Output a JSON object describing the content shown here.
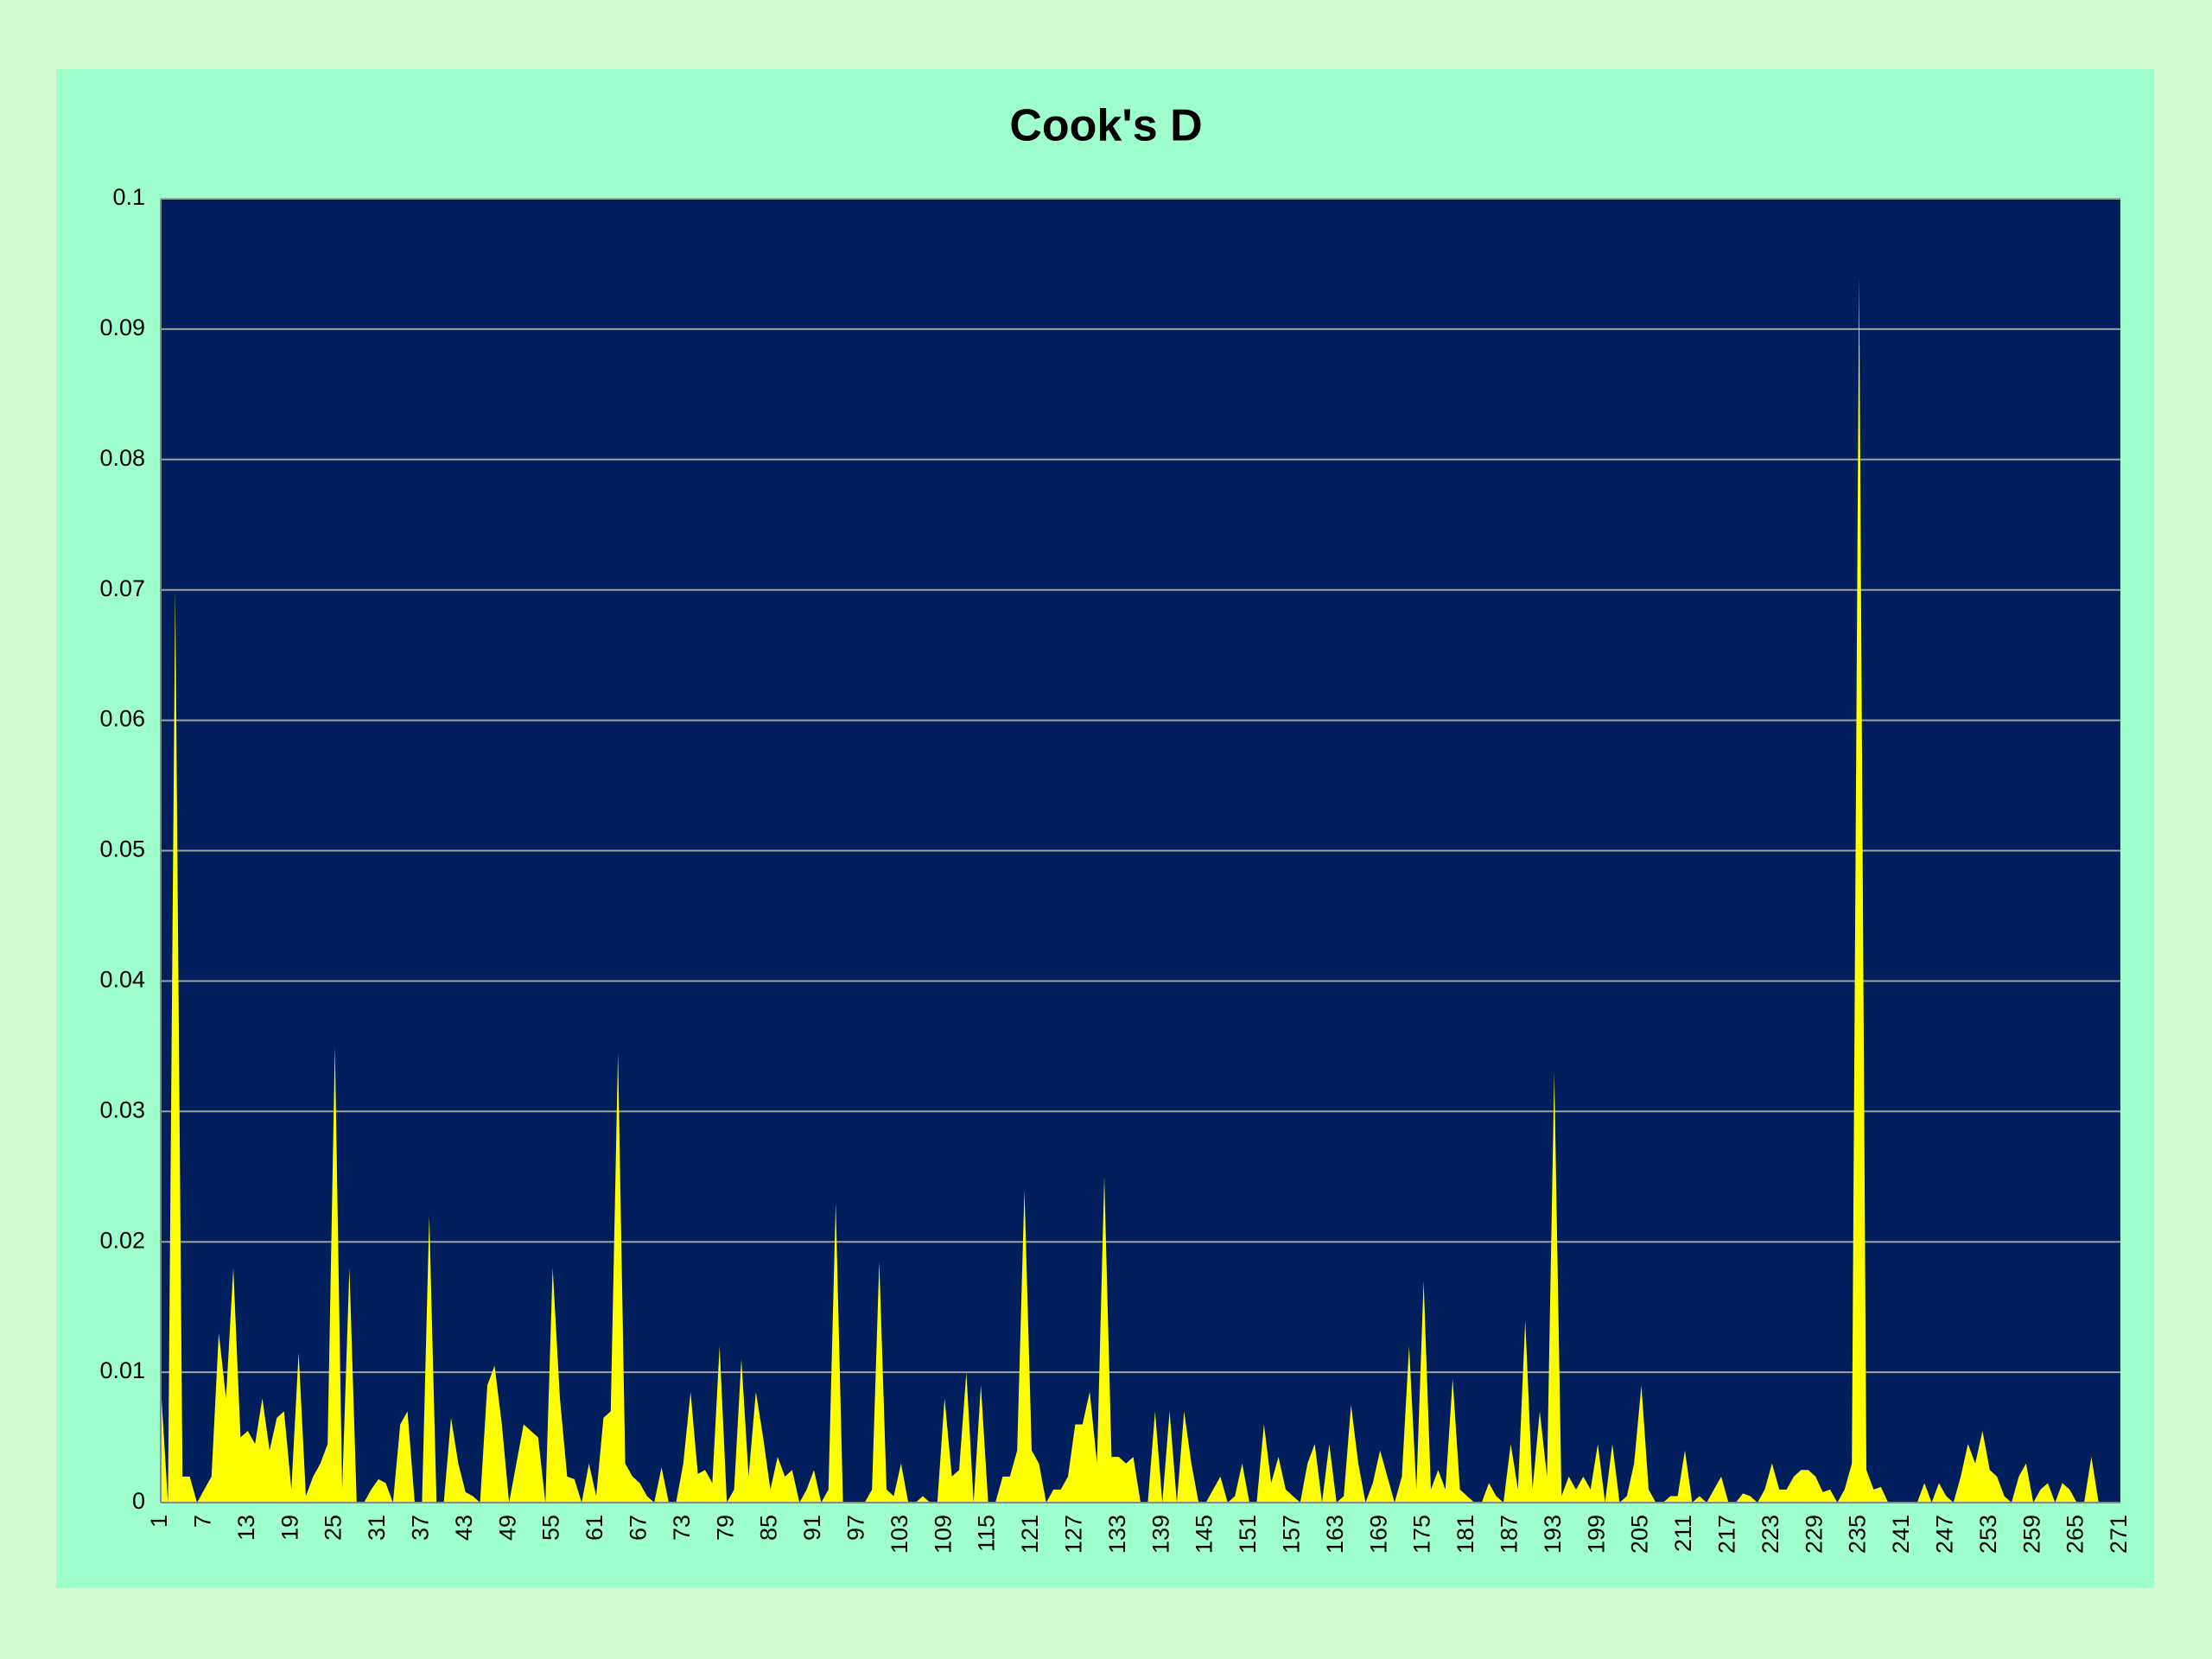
{
  "chart_data": {
    "type": "area",
    "title": "Cook's D",
    "categories": [
      "1",
      null,
      null,
      null,
      null,
      null,
      "7",
      null,
      null,
      null,
      null,
      null,
      "13",
      null,
      null,
      null,
      null,
      null,
      "19",
      null,
      null,
      null,
      null,
      null,
      "25",
      null,
      null,
      null,
      null,
      null,
      "31",
      null,
      null,
      null,
      null,
      null,
      "37",
      null,
      null,
      null,
      null,
      null,
      "43",
      null,
      null,
      null,
      null,
      null,
      "49",
      null,
      null,
      null,
      null,
      null,
      "55",
      null,
      null,
      null,
      null,
      null,
      "61",
      null,
      null,
      null,
      null,
      null,
      "67",
      null,
      null,
      null,
      null,
      null,
      "73",
      null,
      null,
      null,
      null,
      null,
      "79",
      null,
      null,
      null,
      null,
      null,
      "85",
      null,
      null,
      null,
      null,
      null,
      "91",
      null,
      null,
      null,
      null,
      null,
      "97",
      null,
      null,
      null,
      null,
      null,
      "103",
      null,
      null,
      null,
      null,
      null,
      "109",
      null,
      null,
      null,
      null,
      null,
      "115",
      null,
      null,
      null,
      null,
      null,
      "121",
      null,
      null,
      null,
      null,
      null,
      "127",
      null,
      null,
      null,
      null,
      null,
      "133",
      null,
      null,
      null,
      null,
      null,
      "139",
      null,
      null,
      null,
      null,
      null,
      "145",
      null,
      null,
      null,
      null,
      null,
      "151",
      null,
      null,
      null,
      null,
      null,
      "157",
      null,
      null,
      null,
      null,
      null,
      "163",
      null,
      null,
      null,
      null,
      null,
      "169",
      null,
      null,
      null,
      null,
      null,
      "175",
      null,
      null,
      null,
      null,
      null,
      "181",
      null,
      null,
      null,
      null,
      null,
      "187",
      null,
      null,
      null,
      null,
      null,
      "193",
      null,
      null,
      null,
      null,
      null,
      "199",
      null,
      null,
      null,
      null,
      null,
      "205",
      null,
      null,
      null,
      null,
      null,
      "211",
      null,
      null,
      null,
      null,
      null,
      "217",
      null,
      null,
      null,
      null,
      null,
      "223",
      null,
      null,
      null,
      null,
      null,
      "229",
      null,
      null,
      null,
      null,
      null,
      "235",
      null,
      null,
      null,
      null,
      null,
      "241",
      null,
      null,
      null,
      null,
      null,
      "247",
      null,
      null,
      null,
      null,
      null,
      "253",
      null,
      null,
      null,
      null,
      null,
      "259",
      null,
      null,
      null,
      null,
      null,
      "265",
      null,
      null,
      null,
      null,
      null,
      "271"
    ],
    "values": [
      0.009,
      0,
      0.07,
      0.002,
      0.002,
      0,
      0.001,
      0.002,
      0.013,
      0.008,
      0.018,
      0.005,
      0.0055,
      0.0045,
      0.008,
      0.004,
      0.0065,
      0.007,
      0.001,
      0.0115,
      0.0005,
      0.002,
      0.003,
      0.0045,
      0.035,
      0.001,
      0.018,
      0,
      0,
      0.001,
      0.0018,
      0.0015,
      0,
      0.006,
      0.007,
      0,
      0,
      0.022,
      0,
      0,
      0.0065,
      0.003,
      0.0008,
      0.0005,
      0,
      0.009,
      0.0105,
      0.006,
      0,
      0.003,
      0.006,
      0.0055,
      0.005,
      0,
      0.018,
      0.008,
      0.002,
      0.0018,
      0,
      0.003,
      0.0005,
      0.0065,
      0.007,
      0.0345,
      0.003,
      0.002,
      0.0015,
      0.0005,
      0,
      0.0027,
      0,
      0,
      0.003,
      0.0085,
      0.0022,
      0.0025,
      0.0015,
      0.012,
      0,
      0.001,
      0.011,
      0.002,
      0.0085,
      0.005,
      0.001,
      0.0035,
      0.002,
      0.0025,
      0,
      0.001,
      0.0025,
      0,
      0.001,
      0.023,
      0,
      0,
      0,
      0,
      0.001,
      0.0185,
      0.001,
      0.0005,
      0.003,
      0,
      0,
      0.0005,
      0,
      0,
      0.008,
      0.002,
      0.0025,
      0.01,
      0,
      0.009,
      0,
      0,
      0.002,
      0.002,
      0.004,
      0.024,
      0.004,
      0.003,
      0,
      0.001,
      0.001,
      0.002,
      0.006,
      0.006,
      0.0085,
      0.003,
      0.025,
      0.0035,
      0.0035,
      0.003,
      0.0035,
      0,
      0,
      0.007,
      0,
      0.007,
      0,
      0.007,
      0.003,
      0,
      0,
      0.001,
      0.002,
      0,
      0.0005,
      0.003,
      0,
      0,
      0.006,
      0.0015,
      0.0035,
      0.001,
      0.0005,
      0,
      0.003,
      0.0045,
      0,
      0.0045,
      0,
      0.0005,
      0.0075,
      0.003,
      0,
      0.0015,
      0.004,
      0.002,
      0,
      0.002,
      0.012,
      0.001,
      0.017,
      0.001,
      0.0025,
      0.001,
      0.0095,
      0.001,
      0.0005,
      0,
      0,
      0.0015,
      0.0005,
      0,
      0.0045,
      0.001,
      0.014,
      0.001,
      0.007,
      0.002,
      0.033,
      0.0005,
      0.002,
      0.001,
      0.002,
      0.001,
      0.0045,
      0,
      0.0045,
      0,
      0.0005,
      0.003,
      0.009,
      0.001,
      0,
      0,
      0.0005,
      0.0005,
      0.004,
      0,
      0.0005,
      0,
      0.001,
      0.002,
      0,
      0,
      0.0007,
      0.0005,
      0,
      0.001,
      0.003,
      0.001,
      0.001,
      0.002,
      0.0025,
      0.0025,
      0.002,
      0.0008,
      0.001,
      0,
      0.001,
      0.003,
      0.094,
      0.0025,
      0.001,
      0.0012,
      0,
      0,
      0,
      0,
      0,
      0.0015,
      0,
      0.0015,
      0.0005,
      0,
      0.002,
      0.0045,
      0.003,
      0.0055,
      0.0025,
      0.002,
      0.0005,
      0,
      0.002,
      0.003,
      0,
      0.001,
      0.0015,
      0,
      0.0015,
      0.001,
      0,
      0,
      0.0035,
      0,
      0,
      0,
      0
    ],
    "color": "#ffff00",
    "ylim": [
      0,
      0.1
    ],
    "yticks": [
      0,
      0.01,
      0.02,
      0.03,
      0.04,
      0.05,
      0.06,
      0.07,
      0.08,
      0.09,
      0.1
    ],
    "grid": true
  }
}
